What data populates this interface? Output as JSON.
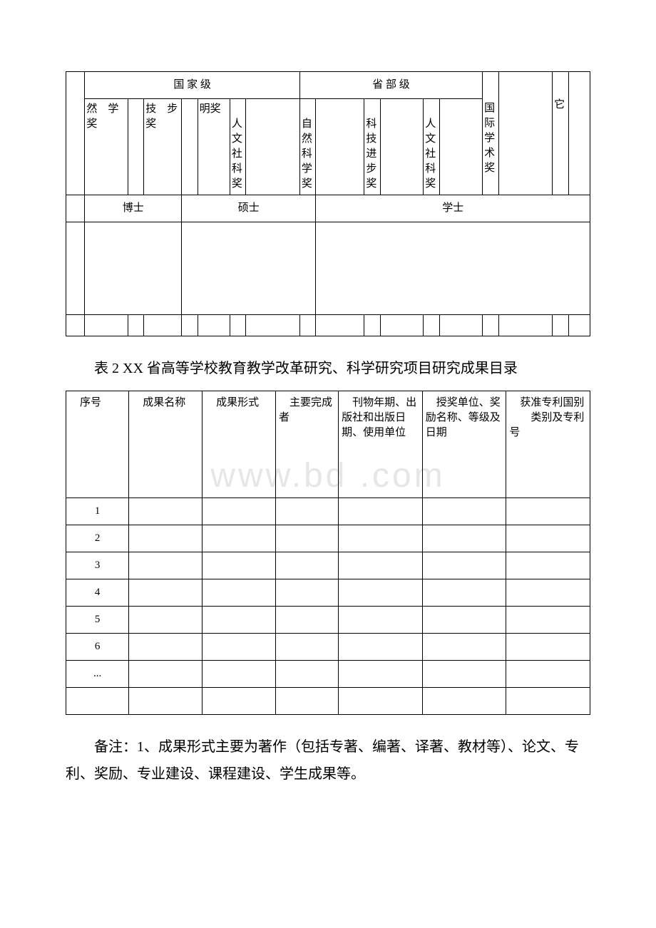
{
  "watermark": "www.bd    .com",
  "table1": {
    "group_national": "国 家 级",
    "group_provincial": "省 部 级",
    "cols_national": [
      "然　学奖",
      "技　步奖",
      "明奖",
      "人文社科奖"
    ],
    "cols_provincial": [
      "自然　科学奖",
      "科技进步奖",
      "人文社科奖"
    ],
    "col_intl": "国际学术奖",
    "col_other": "它",
    "degree_phd": "博士",
    "degree_master": "硕士",
    "degree_bachelor": "学士"
  },
  "caption_table2": "表 2 XX 省高等学校教育教学改革研究、科学研究项目研究成果目录",
  "table2": {
    "headers": [
      "序号",
      "成果名称",
      "成果形式",
      "主要完成者",
      "刊物年期、出版社和出版日期、使用单位",
      "授奖单位、奖励名称、等级及日期",
      "获准专利国别　　类别及专利号"
    ],
    "rows": [
      "1",
      "2",
      "3",
      "4",
      "5",
      "6",
      "..."
    ],
    "col_widths_pct": [
      12,
      14,
      14,
      12,
      16,
      16,
      16
    ]
  },
  "note": "备注：1、成果形式主要为著作（包括专著、编著、译著、教材等）、论文、专利、奖励、专业建设、课程建设、学生成果等。",
  "colors": {
    "text": "#000000",
    "border": "#000000",
    "background": "#ffffff",
    "watermark": "#e6e6e6"
  },
  "fonts": {
    "body_family": "SimSun",
    "body_size_pt": 11,
    "caption_size_pt": 15
  }
}
